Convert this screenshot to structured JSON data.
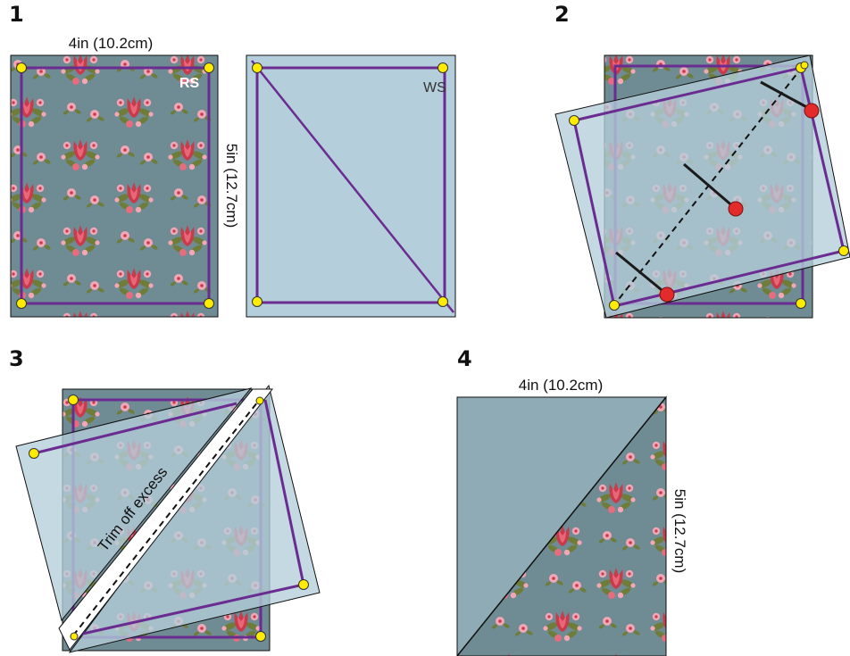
{
  "steps": [
    "1",
    "2",
    "3",
    "4"
  ],
  "labels": {
    "width": "4in (10.2cm)",
    "height": "5in (12.7cm)",
    "right_side": "RS",
    "wrong_side": "WS",
    "trim": "Trim off excess"
  },
  "colors": {
    "fabric_bg": "#6f8b94",
    "back_fabric": "#b5cedb",
    "stitch_line": "#6a2c91",
    "corner_dot": "#ffec00",
    "pin_head": "#e32b2b",
    "outline": "#111111"
  }
}
